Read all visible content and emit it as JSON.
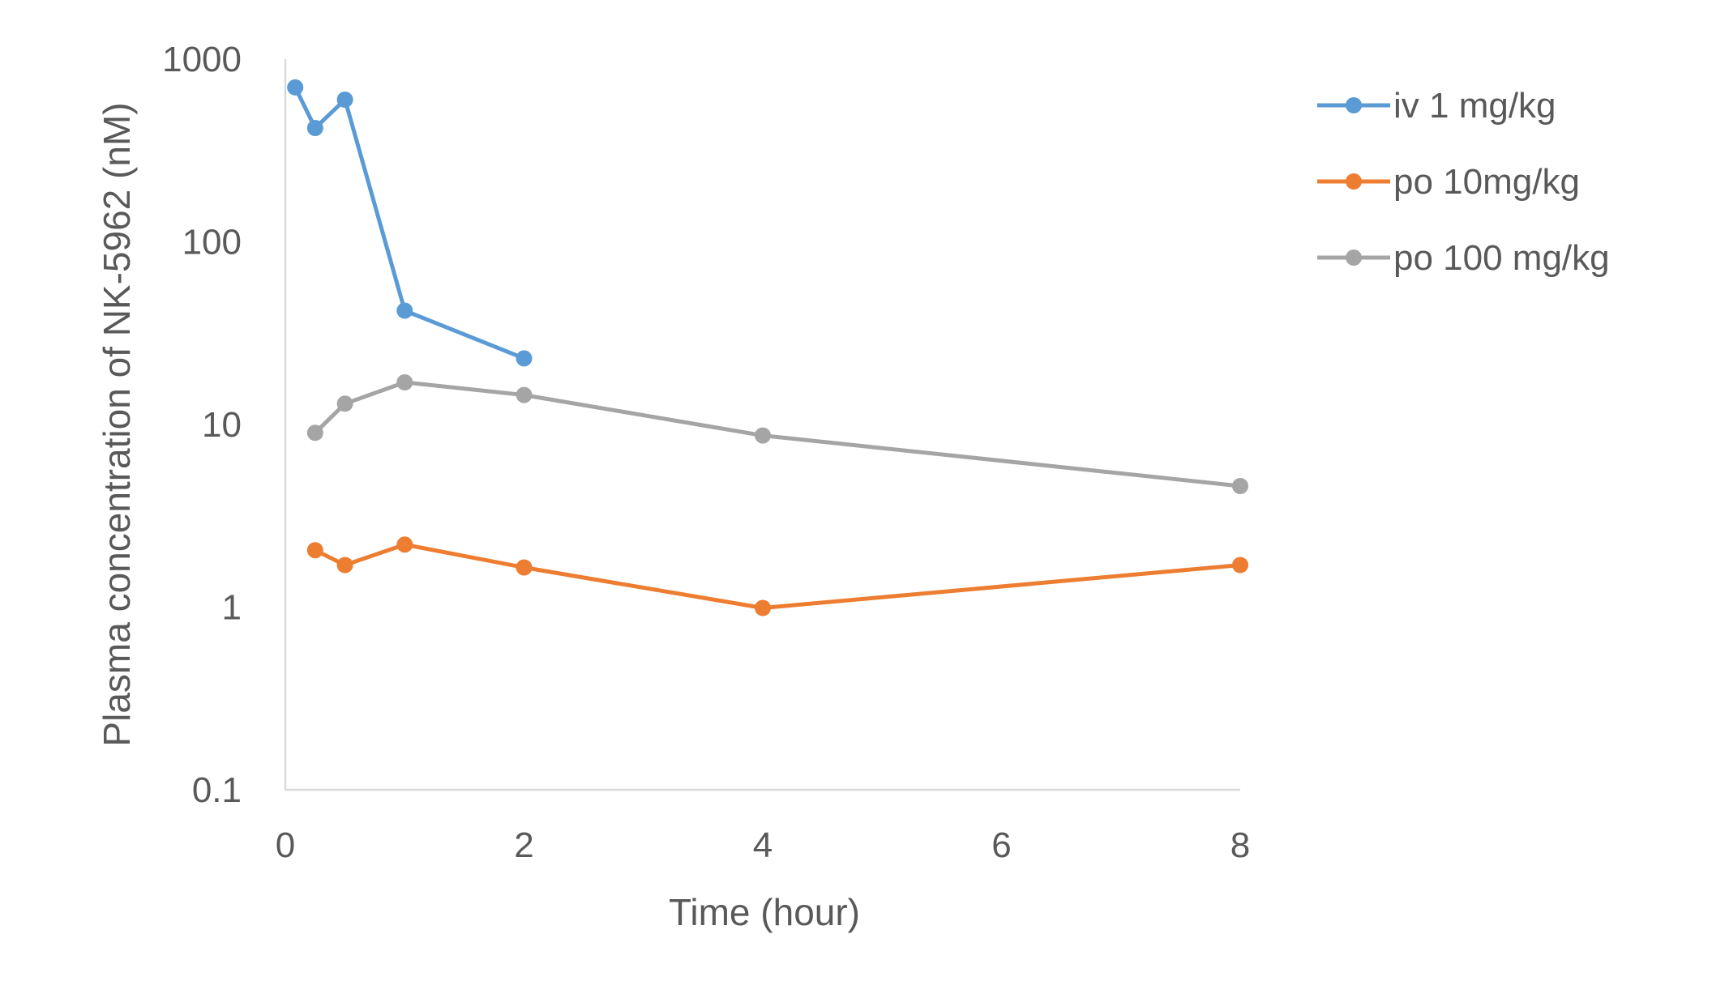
{
  "chart_data": {
    "type": "line",
    "title": "",
    "xlabel": "Time (hour)",
    "ylabel": "Plasma concentration of NK-5962 (nM)",
    "xlim": [
      0,
      8
    ],
    "ylim": [
      0.1,
      1000
    ],
    "yscale": "log",
    "x_ticks": [
      "0",
      "2",
      "4",
      "6",
      "8"
    ],
    "x_tick_values": [
      0,
      2,
      4,
      6,
      8
    ],
    "y_ticks": [
      "0.1",
      "1",
      "10",
      "100",
      "1000"
    ],
    "y_tick_values": [
      0.1,
      1,
      10,
      100,
      1000
    ],
    "grid": false,
    "legend_position": "right",
    "series": [
      {
        "name": "iv 1 mg/kg",
        "color": "#5b9bd5",
        "x": [
          0.083,
          0.25,
          0.5,
          1,
          2
        ],
        "values": [
          700,
          420,
          600,
          42,
          23
        ]
      },
      {
        "name": "po 10mg/kg",
        "color": "#ed7d31",
        "x": [
          0.25,
          0.5,
          1,
          2,
          4,
          8
        ],
        "values": [
          2.05,
          1.7,
          2.2,
          1.65,
          0.99,
          1.7
        ]
      },
      {
        "name": "po 100 mg/kg",
        "color": "#a5a5a5",
        "x": [
          0.25,
          0.5,
          1,
          2,
          4,
          8
        ],
        "values": [
          9,
          13,
          17,
          14.5,
          8.7,
          4.6
        ]
      }
    ]
  }
}
